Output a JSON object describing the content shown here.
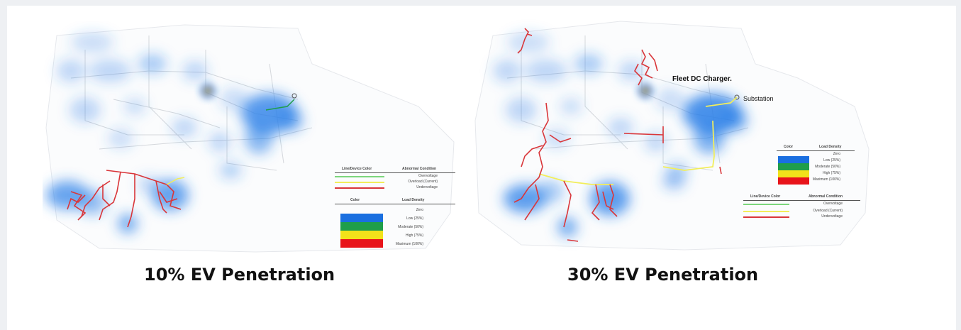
{
  "panels": [
    {
      "caption": "10% EV Penetration",
      "legend": {
        "condition_header_left": "Line/Device Color",
        "condition_header_right": "Abnormal Condition",
        "conditions": [
          {
            "label": "Overvoltage",
            "color": "#7cd67c"
          },
          {
            "label": "Overload (Current)",
            "color": "#f2ee5a"
          },
          {
            "label": "Undervoltage",
            "color": "#d9363a"
          }
        ],
        "density_header_left": "Color",
        "density_header_right": "Load Density",
        "densities": [
          {
            "label": "Zero",
            "color": "#ffffff"
          },
          {
            "label": "Low (25%)",
            "color": "#1a6fe0"
          },
          {
            "label": "Moderate (50%)",
            "color": "#1f9e4a"
          },
          {
            "label": "High (75%)",
            "color": "#f2e21a"
          },
          {
            "label": "Maximum (100%)",
            "color": "#e8141a"
          }
        ]
      }
    },
    {
      "caption": "30% EV Penetration",
      "label_charger": "Fleet DC Charger.",
      "label_substation": "Substation",
      "legend": {
        "density_header_left": "Color",
        "density_header_right": "Load Density",
        "densities": [
          {
            "label": "Zero",
            "color": "#ffffff"
          },
          {
            "label": "Low (25%)",
            "color": "#1a6fe0"
          },
          {
            "label": "Moderate (50%)",
            "color": "#1f9e4a"
          },
          {
            "label": "High (75%)",
            "color": "#f2e21a"
          },
          {
            "label": "Maximum (100%)",
            "color": "#e8141a"
          }
        ],
        "condition_header_left": "Line/Device Color",
        "condition_header_right": "Abnormal Condition",
        "conditions": [
          {
            "label": "Overvoltage",
            "color": "#7cd67c"
          },
          {
            "label": "Overload (Current)",
            "color": "#f2ee5a"
          },
          {
            "label": "Undervoltage",
            "color": "#d9363a"
          }
        ]
      }
    }
  ],
  "colors": {
    "heat_blue": "#2a7fe8",
    "undervoltage_line": "#d9363a",
    "overload_line": "#f2ee5a",
    "overvoltage_line": "#7cd67c",
    "feeder_gray": "#c9ccd1"
  }
}
